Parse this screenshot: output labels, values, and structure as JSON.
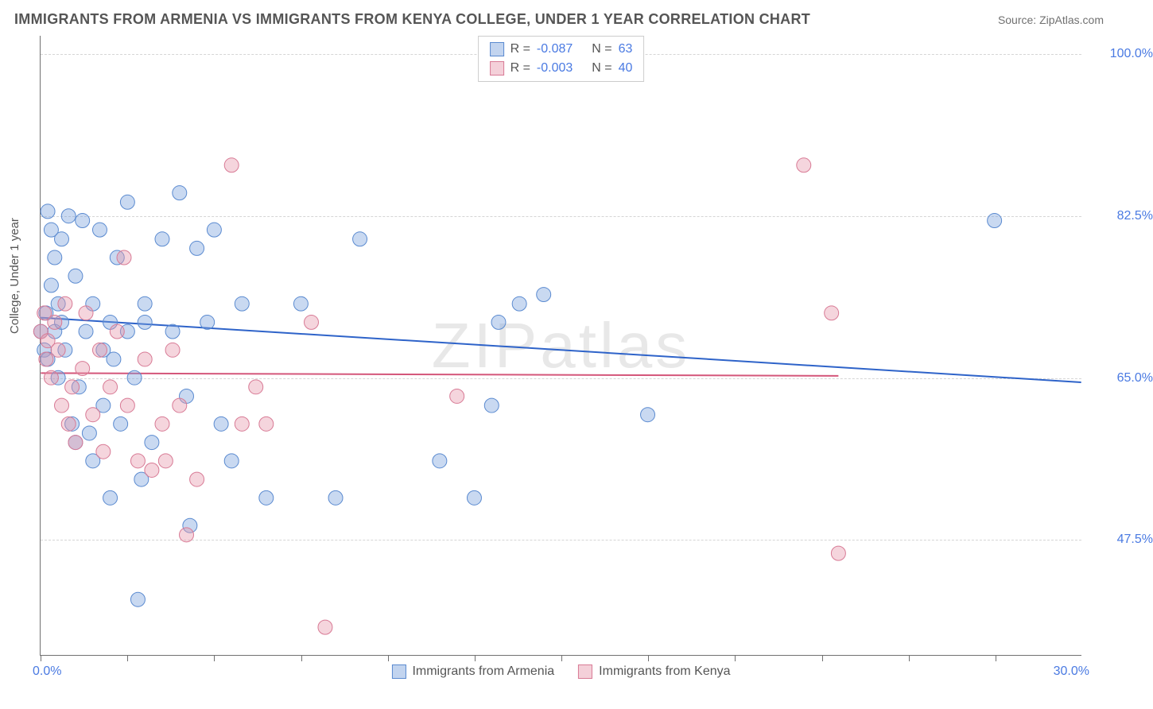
{
  "header": {
    "title": "IMMIGRANTS FROM ARMENIA VS IMMIGRANTS FROM KENYA COLLEGE, UNDER 1 YEAR CORRELATION CHART",
    "source": "Source: ZipAtlas.com"
  },
  "chart": {
    "type": "scatter",
    "watermark": "ZIPatlas",
    "y_axis_label": "College, Under 1 year",
    "background_color": "#ffffff",
    "grid_color": "#d5d5d5",
    "axis_color": "#707070",
    "tick_label_color": "#4a7ae2",
    "marker_radius": 9,
    "xlim": [
      0,
      30
    ],
    "ylim": [
      35,
      102
    ],
    "x_ticks": [
      0,
      2.5,
      5,
      7.5,
      10,
      12.5,
      15,
      17.5,
      20,
      22.5,
      25,
      27.5
    ],
    "x_tick_labels": {
      "left": "0.0%",
      "right": "30.0%"
    },
    "y_grid": [
      {
        "value": 100.0,
        "label": "100.0%"
      },
      {
        "value": 82.5,
        "label": "82.5%"
      },
      {
        "value": 65.0,
        "label": "65.0%"
      },
      {
        "value": 47.5,
        "label": "47.5%"
      }
    ],
    "legend_top": [
      {
        "swatch": "blue",
        "r_label": "R =",
        "r_value": "-0.087",
        "n_label": "N =",
        "n_value": "63"
      },
      {
        "swatch": "pink",
        "r_label": "R =",
        "r_value": "-0.003",
        "n_label": "N =",
        "n_value": "40"
      }
    ],
    "legend_bottom": [
      {
        "swatch": "blue",
        "label": "Immigrants from Armenia"
      },
      {
        "swatch": "pink",
        "label": "Immigrants from Kenya"
      }
    ],
    "series": [
      {
        "name": "Immigrants from Armenia",
        "color_fill": "rgba(120,160,220,0.40)",
        "color_stroke": "#5a8ad0",
        "trend": {
          "x1": 0,
          "y1": 71.5,
          "x2": 30,
          "y2": 64.5,
          "color": "#2e63c9",
          "width": 2
        },
        "points": [
          [
            0.0,
            70
          ],
          [
            0.1,
            68
          ],
          [
            0.15,
            72
          ],
          [
            0.2,
            83
          ],
          [
            0.3,
            81
          ],
          [
            0.3,
            75
          ],
          [
            0.4,
            78
          ],
          [
            0.4,
            70
          ],
          [
            0.5,
            73
          ],
          [
            0.5,
            65
          ],
          [
            0.6,
            80
          ],
          [
            0.7,
            68
          ],
          [
            0.8,
            82.5
          ],
          [
            0.9,
            60
          ],
          [
            1.0,
            76
          ],
          [
            1.0,
            58
          ],
          [
            1.2,
            82
          ],
          [
            1.3,
            70
          ],
          [
            1.5,
            73
          ],
          [
            1.5,
            56
          ],
          [
            1.7,
            81
          ],
          [
            1.8,
            68
          ],
          [
            1.8,
            62
          ],
          [
            2.0,
            52
          ],
          [
            2.0,
            71
          ],
          [
            2.2,
            78
          ],
          [
            2.3,
            60
          ],
          [
            2.5,
            84
          ],
          [
            2.5,
            70
          ],
          [
            2.7,
            65
          ],
          [
            2.8,
            41
          ],
          [
            3.0,
            73
          ],
          [
            3.0,
            71
          ],
          [
            3.2,
            58
          ],
          [
            3.5,
            80
          ],
          [
            3.8,
            70
          ],
          [
            4.0,
            85
          ],
          [
            4.2,
            63
          ],
          [
            4.5,
            79
          ],
          [
            4.8,
            71
          ],
          [
            5.0,
            81
          ],
          [
            5.2,
            60
          ],
          [
            5.5,
            56
          ],
          [
            5.8,
            73
          ],
          [
            6.5,
            52
          ],
          [
            7.5,
            73
          ],
          [
            8.5,
            52
          ],
          [
            9.2,
            80
          ],
          [
            11.5,
            56
          ],
          [
            12.5,
            52
          ],
          [
            13.2,
            71
          ],
          [
            13.0,
            62
          ],
          [
            13.8,
            73
          ],
          [
            14.5,
            74
          ],
          [
            17.5,
            61
          ],
          [
            27.5,
            82
          ],
          [
            0.2,
            67
          ],
          [
            0.6,
            71
          ],
          [
            1.1,
            64
          ],
          [
            1.4,
            59
          ],
          [
            2.1,
            67
          ],
          [
            2.9,
            54
          ],
          [
            4.3,
            49
          ]
        ]
      },
      {
        "name": "Immigrants from Kenya",
        "color_fill": "rgba(230,150,170,0.40)",
        "color_stroke": "#d87a95",
        "trend": {
          "x1": 0,
          "y1": 65.5,
          "x2": 23,
          "y2": 65.2,
          "color": "#d4567a",
          "width": 2
        },
        "points": [
          [
            0.0,
            70
          ],
          [
            0.1,
            72
          ],
          [
            0.15,
            67
          ],
          [
            0.2,
            69
          ],
          [
            0.3,
            65
          ],
          [
            0.4,
            71
          ],
          [
            0.5,
            68
          ],
          [
            0.6,
            62
          ],
          [
            0.7,
            73
          ],
          [
            0.8,
            60
          ],
          [
            0.9,
            64
          ],
          [
            1.0,
            58
          ],
          [
            1.2,
            66
          ],
          [
            1.3,
            72
          ],
          [
            1.5,
            61
          ],
          [
            1.7,
            68
          ],
          [
            1.8,
            57
          ],
          [
            2.0,
            64
          ],
          [
            2.2,
            70
          ],
          [
            2.4,
            78
          ],
          [
            2.5,
            62
          ],
          [
            2.8,
            56
          ],
          [
            3.0,
            67
          ],
          [
            3.2,
            55
          ],
          [
            3.5,
            60
          ],
          [
            3.6,
            56
          ],
          [
            3.8,
            68
          ],
          [
            4.0,
            62
          ],
          [
            4.2,
            48
          ],
          [
            4.5,
            54
          ],
          [
            5.5,
            88
          ],
          [
            5.8,
            60
          ],
          [
            6.2,
            64
          ],
          [
            6.5,
            60
          ],
          [
            7.8,
            71
          ],
          [
            8.2,
            38
          ],
          [
            12.0,
            63
          ],
          [
            22.0,
            88
          ],
          [
            22.8,
            72
          ],
          [
            23.0,
            46
          ]
        ]
      }
    ]
  }
}
